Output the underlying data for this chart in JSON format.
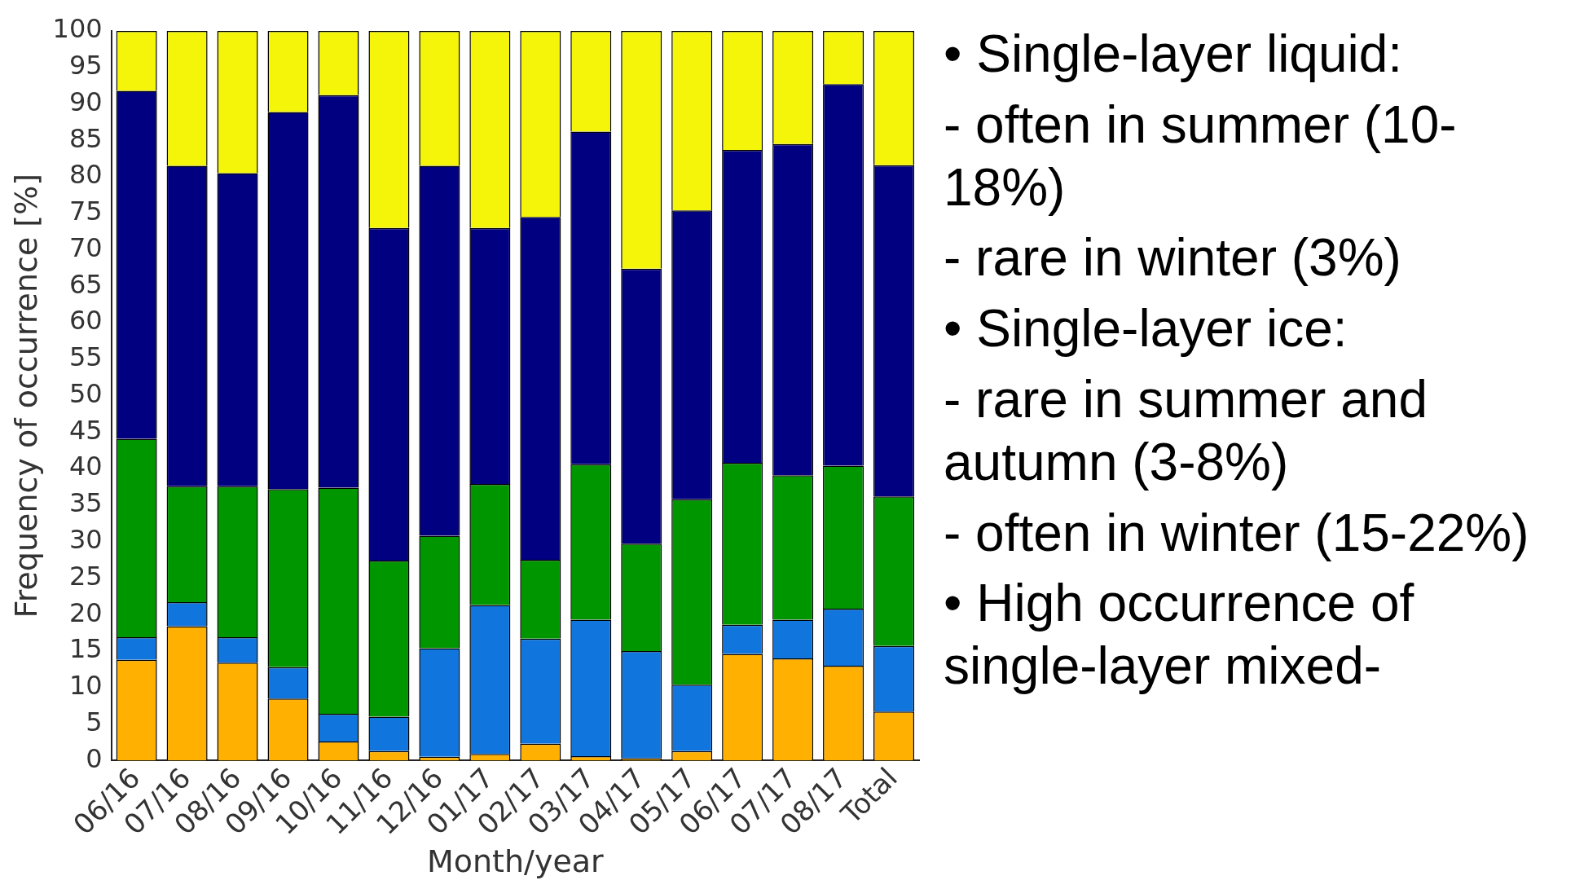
{
  "chart_data": {
    "type": "bar",
    "stacked": true,
    "xlabel": "Month/year",
    "ylabel": "Frequency of occurrence [%]",
    "categories": [
      "06/16",
      "07/16",
      "08/16",
      "09/16",
      "10/16",
      "11/16",
      "12/16",
      "01/17",
      "02/17",
      "03/17",
      "04/17",
      "05/17",
      "06/17",
      "07/17",
      "08/17",
      "Total"
    ],
    "series": [
      {
        "color": "#ffb000",
        "values": [
          13.8,
          18.4,
          13.4,
          8.5,
          2.6,
          1.3,
          0.5,
          0.9,
          2.3,
          0.6,
          0.3,
          1.3,
          14.6,
          14.0,
          13.0,
          6.7
        ]
      },
      {
        "color": "#1075dc",
        "values": [
          3.1,
          3.3,
          3.5,
          4.3,
          3.8,
          4.7,
          14.9,
          20.4,
          14.4,
          18.7,
          14.7,
          9.1,
          4.0,
          5.3,
          7.8,
          9.0
        ]
      },
      {
        "color": "#009600",
        "values": [
          27.2,
          15.9,
          20.7,
          24.4,
          31.0,
          21.4,
          15.4,
          16.6,
          10.8,
          21.3,
          14.7,
          25.4,
          22.2,
          19.8,
          19.6,
          20.5
        ]
      },
      {
        "color": "#000080",
        "values": [
          47.7,
          43.9,
          42.9,
          51.7,
          53.8,
          45.6,
          50.7,
          35.1,
          47.0,
          45.6,
          37.7,
          39.6,
          42.9,
          45.4,
          52.3,
          45.4
        ]
      },
      {
        "color": "#f5f50a",
        "values": [
          8.2,
          18.5,
          19.5,
          11.1,
          8.8,
          27.0,
          18.5,
          27.0,
          25.5,
          13.8,
          32.6,
          24.6,
          16.3,
          15.5,
          7.3,
          18.4
        ]
      }
    ],
    "ylim": [
      0,
      100
    ],
    "yticks": [
      0,
      5,
      10,
      15,
      20,
      25,
      30,
      35,
      40,
      45,
      50,
      55,
      60,
      65,
      70,
      75,
      80,
      85,
      90,
      95,
      100
    ],
    "grid": false,
    "legend": false,
    "annotations": [
      "• Single-layer liquid:",
      "- often in summer (10-18%)",
      "- rare in winter (3%)",
      "• Single-layer ice:",
      "- rare in summer and autumn (3-8%)",
      "- often in winter (15-22%)",
      "• High occurrence of single-layer mixed-"
    ]
  }
}
